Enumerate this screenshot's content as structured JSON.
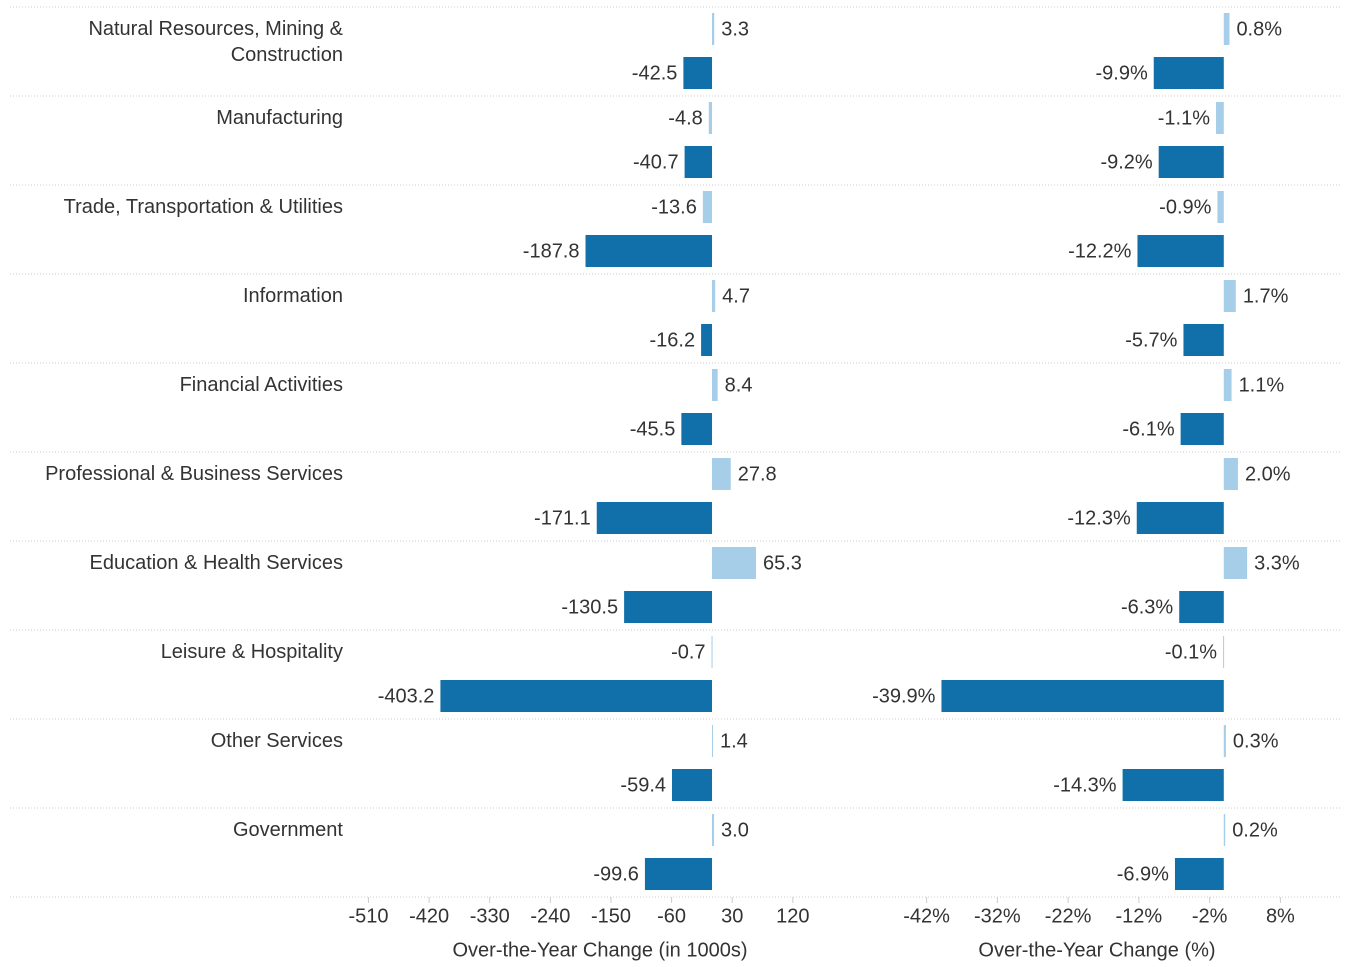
{
  "chart_data": [
    {
      "type": "hbar",
      "xlabel": "Over-the-Year Change (in 1000s)",
      "categories": [
        "Natural Resources, Mining & Construction",
        "Manufacturing",
        "Trade, Transportation & Utilities",
        "Information",
        "Financial Activities",
        "Professional & Business Services",
        "Education & Health Services",
        "Leisure & Hospitality",
        "Other Services",
        "Government"
      ],
      "series": [
        {
          "color": "#a6cee9",
          "values": [
            3.3,
            -4.8,
            -13.6,
            4.7,
            8.4,
            27.8,
            65.3,
            -0.7,
            1.4,
            3.0
          ],
          "value_labels": [
            "3.3",
            "-4.8",
            "-13.6",
            "4.7",
            "8.4",
            "27.8",
            "65.3",
            "-0.7",
            "1.4",
            "3.0"
          ]
        },
        {
          "color": "#1170aa",
          "values": [
            -42.5,
            -40.7,
            -187.8,
            -16.2,
            -45.5,
            -171.1,
            -130.5,
            -403.2,
            -59.4,
            -99.6
          ],
          "value_labels": [
            "-42.5",
            "-40.7",
            "-187.8",
            "-16.2",
            "-45.5",
            "-171.1",
            "-130.5",
            "-403.2",
            "-59.4",
            "-99.6"
          ]
        }
      ],
      "xlim": [
        -530,
        190
      ],
      "xticks": [
        -510,
        -420,
        -330,
        -240,
        -150,
        -60,
        30,
        120
      ]
    },
    {
      "type": "hbar",
      "xlabel": "Over-the-Year Change (%)",
      "series": [
        {
          "color": "#a6cee9",
          "values": [
            0.8,
            -1.1,
            -0.9,
            1.7,
            1.1,
            2.0,
            3.3,
            -0.1,
            0.3,
            0.2
          ],
          "value_labels": [
            "0.8%",
            "-1.1%",
            "-0.9%",
            "1.7%",
            "1.1%",
            "2.0%",
            "3.3%",
            "-0.1%",
            "0.3%",
            "0.2%"
          ]
        },
        {
          "color": "#1170aa",
          "values": [
            -9.9,
            -9.2,
            -12.2,
            -5.7,
            -6.1,
            -12.3,
            -6.3,
            -39.9,
            -14.3,
            -6.9
          ],
          "value_labels": [
            "-9.9%",
            "-9.2%",
            "-12.2%",
            "-5.7%",
            "-6.1%",
            "-12.3%",
            "-6.3%",
            "-39.9%",
            "-14.3%",
            "-6.9%"
          ]
        }
      ],
      "xlim": [
        -50,
        16
      ],
      "xticks": [
        {
          "value": -42,
          "label": "-42%"
        },
        {
          "value": -32,
          "label": "-32%"
        },
        {
          "value": -22,
          "label": "-22%"
        },
        {
          "value": -12,
          "label": "-12%"
        },
        {
          "value": -2,
          "label": "-2%"
        },
        {
          "value": 8,
          "label": "8%"
        }
      ]
    }
  ]
}
